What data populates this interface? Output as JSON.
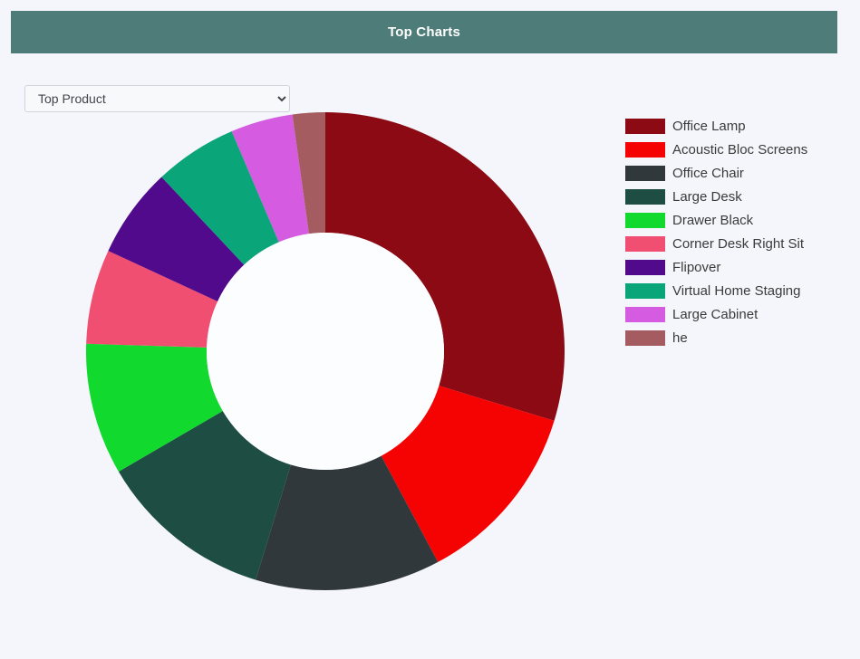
{
  "page": {
    "background_color": "#f4f6fb"
  },
  "header": {
    "title": "Top Charts",
    "background_color": "#4e7d79",
    "text_color": "#ffffff"
  },
  "controls": {
    "chart_selector": {
      "selected": "Top Product",
      "options": [
        "Top Product"
      ]
    }
  },
  "chart_data": {
    "type": "pie",
    "subtype": "donut",
    "title": "Top Product",
    "legend_position": "right",
    "start_angle_deg": 0,
    "direction": "clockwise",
    "hole_color": "#fcfdfe",
    "categories": [
      "Office Lamp",
      "Acoustic Bloc Screens",
      "Office Chair",
      "Large Desk",
      "Drawer Black",
      "Corner Desk Right Sit",
      "Flipover",
      "Virtual Home Staging",
      "Large Cabinet",
      "he"
    ],
    "values": [
      29.7,
      12.5,
      12.5,
      11.9,
      8.9,
      6.4,
      6.1,
      5.6,
      4.2,
      2.2
    ],
    "colors": [
      "#8b0a14",
      "#f50303",
      "#31383b",
      "#1e4d44",
      "#12d92e",
      "#f04f72",
      "#500a8b",
      "#0aa578",
      "#d55be0",
      "#a45c60"
    ]
  }
}
